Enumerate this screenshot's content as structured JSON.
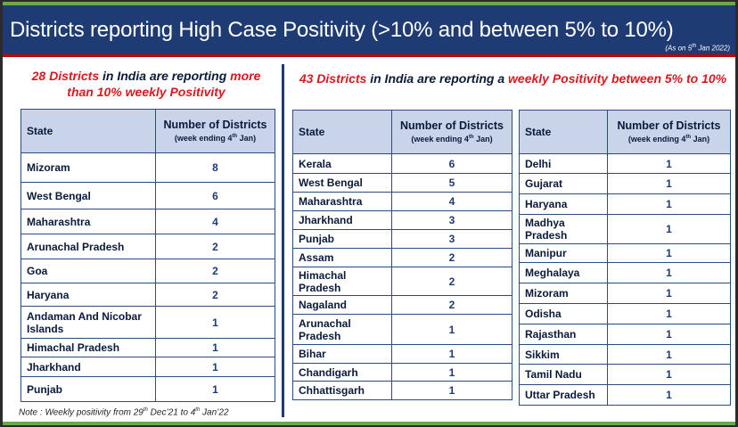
{
  "header": {
    "title": "Districts reporting High Case Positivity (>10% and between 5% to 10%)",
    "asof_prefix": "(As on 5",
    "asof_sup": "th",
    "asof_suffix": " Jan 2022)"
  },
  "left": {
    "sub_red": "28 Districts",
    "sub_mid": " in India are reporting ",
    "sub_red2": "more than 10% weekly Positivity",
    "col_state": "State",
    "col_num": "Number of Districts",
    "col_num_sub_prefix": "(week ending 4",
    "col_num_sub_sup": "th",
    "col_num_sub_suffix": " Jan)",
    "rows": [
      {
        "state": "Mizoram",
        "count": "8"
      },
      {
        "state": "West Bengal",
        "count": "6"
      },
      {
        "state": "Maharashtra",
        "count": "4"
      },
      {
        "state": "Arunachal Pradesh",
        "count": "2"
      },
      {
        "state": "Goa",
        "count": "2"
      },
      {
        "state": "Haryana",
        "count": "2"
      },
      {
        "state": "Andaman And Nicobar Islands",
        "count": "1"
      },
      {
        "state": "Himachal Pradesh",
        "count": "1"
      },
      {
        "state": "Jharkhand",
        "count": "1"
      },
      {
        "state": "Punjab",
        "count": "1"
      }
    ]
  },
  "right": {
    "sub_red": "43 Districts",
    "sub_mid": " in India are reporting a ",
    "sub_red2": "weekly Positivity between 5% to 10%",
    "col_state": "State",
    "col_num": "Number of Districts",
    "col_num_sub_prefix": "(week ending 4",
    "col_num_sub_sup": "th",
    "col_num_sub_suffix": " Jan)",
    "table1": [
      {
        "state": "Kerala",
        "count": "6"
      },
      {
        "state": "West Bengal",
        "count": "5"
      },
      {
        "state": "Maharashtra",
        "count": "4"
      },
      {
        "state": "Jharkhand",
        "count": "3"
      },
      {
        "state": "Punjab",
        "count": "3"
      },
      {
        "state": "Assam",
        "count": "2"
      },
      {
        "state": "Himachal Pradesh",
        "count": "2"
      },
      {
        "state": "Nagaland",
        "count": "2"
      },
      {
        "state": "Arunachal Pradesh",
        "count": "1"
      },
      {
        "state": "Bihar",
        "count": "1"
      },
      {
        "state": "Chandigarh",
        "count": "1"
      },
      {
        "state": "Chhattisgarh",
        "count": "1"
      }
    ],
    "table2": [
      {
        "state": "Delhi",
        "count": "1"
      },
      {
        "state": "Gujarat",
        "count": "1"
      },
      {
        "state": "Haryana",
        "count": "1"
      },
      {
        "state": "Madhya Pradesh",
        "count": "1"
      },
      {
        "state": "Manipur",
        "count": "1"
      },
      {
        "state": "Meghalaya",
        "count": "1"
      },
      {
        "state": "Mizoram",
        "count": "1"
      },
      {
        "state": "Odisha",
        "count": "1"
      },
      {
        "state": "Rajasthan",
        "count": "1"
      },
      {
        "state": "Sikkim",
        "count": "1"
      },
      {
        "state": "Tamil Nadu",
        "count": "1"
      },
      {
        "state": "Uttar Pradesh",
        "count": "1"
      }
    ]
  },
  "note": {
    "prefix": "Note : Weekly positivity from 29",
    "sup1": "th",
    "mid": " Dec’21 to 4",
    "sup2": "th",
    "suffix": " Jan’22"
  }
}
